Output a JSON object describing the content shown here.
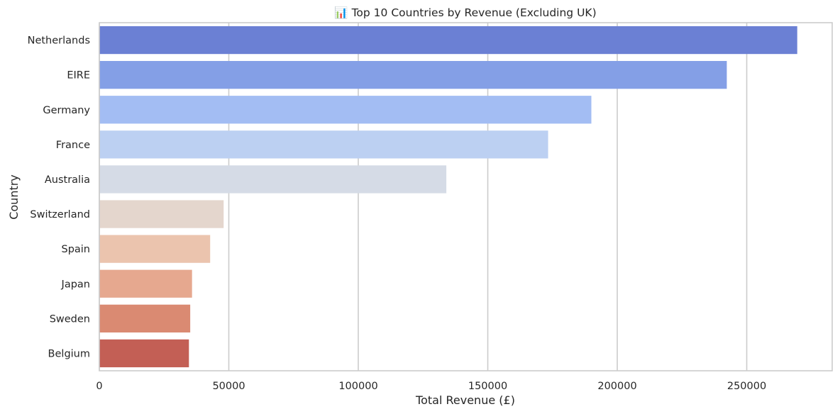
{
  "chart_data": {
    "type": "bar",
    "orientation": "horizontal",
    "title": "📊 Top 10 Countries by Revenue (Excluding UK)",
    "xlabel": "Total Revenue (£)",
    "ylabel": "Country",
    "categories": [
      "Netherlands",
      "EIRE",
      "Germany",
      "France",
      "Australia",
      "Switzerland",
      "Spain",
      "Japan",
      "Sweden",
      "Belgium"
    ],
    "values": [
      269500,
      242300,
      190000,
      173300,
      134000,
      48000,
      42800,
      35800,
      35100,
      34600
    ],
    "colors": [
      "#6b80d4",
      "#849fe6",
      "#a3bdf3",
      "#bcd0f2",
      "#d5dbe6",
      "#e4d6cd",
      "#ebc4ae",
      "#e6a88f",
      "#da8a72",
      "#c35f55"
    ],
    "xlim": [
      0,
      283000
    ],
    "xticks": [
      0,
      50000,
      100000,
      150000,
      200000,
      250000
    ],
    "xtick_labels": [
      "0",
      "50000",
      "100000",
      "150000",
      "200000",
      "250000"
    ],
    "grid": "vertical",
    "legend": "none"
  }
}
